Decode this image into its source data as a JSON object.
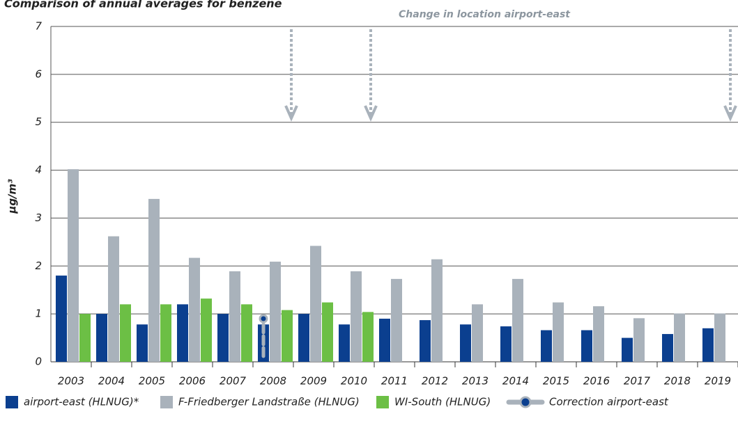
{
  "chart_data": {
    "type": "bar",
    "title": "Comparison of annual averages for benzene",
    "annotation": "Change in location airport-east",
    "y_label": "µg/m³",
    "categories": [
      "2003",
      "2004",
      "2005",
      "2006",
      "2007",
      "2008",
      "2009",
      "2010",
      "2011",
      "2012",
      "2013",
      "2014",
      "2015",
      "2016",
      "2017",
      "2018",
      "2019"
    ],
    "series": [
      {
        "name": "airport-east (HLNUG)*",
        "color": "#0b3f8f",
        "values": [
          1.8,
          1.0,
          0.78,
          1.2,
          1.0,
          0.78,
          1.0,
          0.78,
          0.9,
          0.87,
          0.78,
          0.74,
          0.66,
          0.66,
          0.5,
          0.58,
          0.7
        ]
      },
      {
        "name": "F-Friedberger Landstraße (HLNUG)",
        "color": "#a9b2bb",
        "values": [
          4.02,
          2.62,
          3.4,
          2.17,
          1.89,
          2.09,
          2.42,
          1.89,
          1.73,
          2.14,
          1.2,
          1.73,
          1.24,
          1.16,
          0.91,
          1.01,
          1.01
        ]
      },
      {
        "name": "WI-South (HLNUG)",
        "color": "#6cbf45",
        "values": [
          1.0,
          1.2,
          1.2,
          1.32,
          1.2,
          1.08,
          1.24,
          1.04,
          null,
          null,
          null,
          null,
          null,
          null,
          null,
          null,
          null
        ]
      },
      {
        "name": "Correction airport-east",
        "color": "#a9b2bb",
        "values": [
          null,
          null,
          null,
          null,
          null,
          0.9,
          null,
          null,
          null,
          null,
          null,
          null,
          null,
          null,
          null,
          null,
          null
        ]
      }
    ],
    "ylim": [
      0,
      7
    ],
    "yticks": [
      0,
      1,
      2,
      3,
      4,
      5,
      6,
      7
    ],
    "grid": true
  }
}
